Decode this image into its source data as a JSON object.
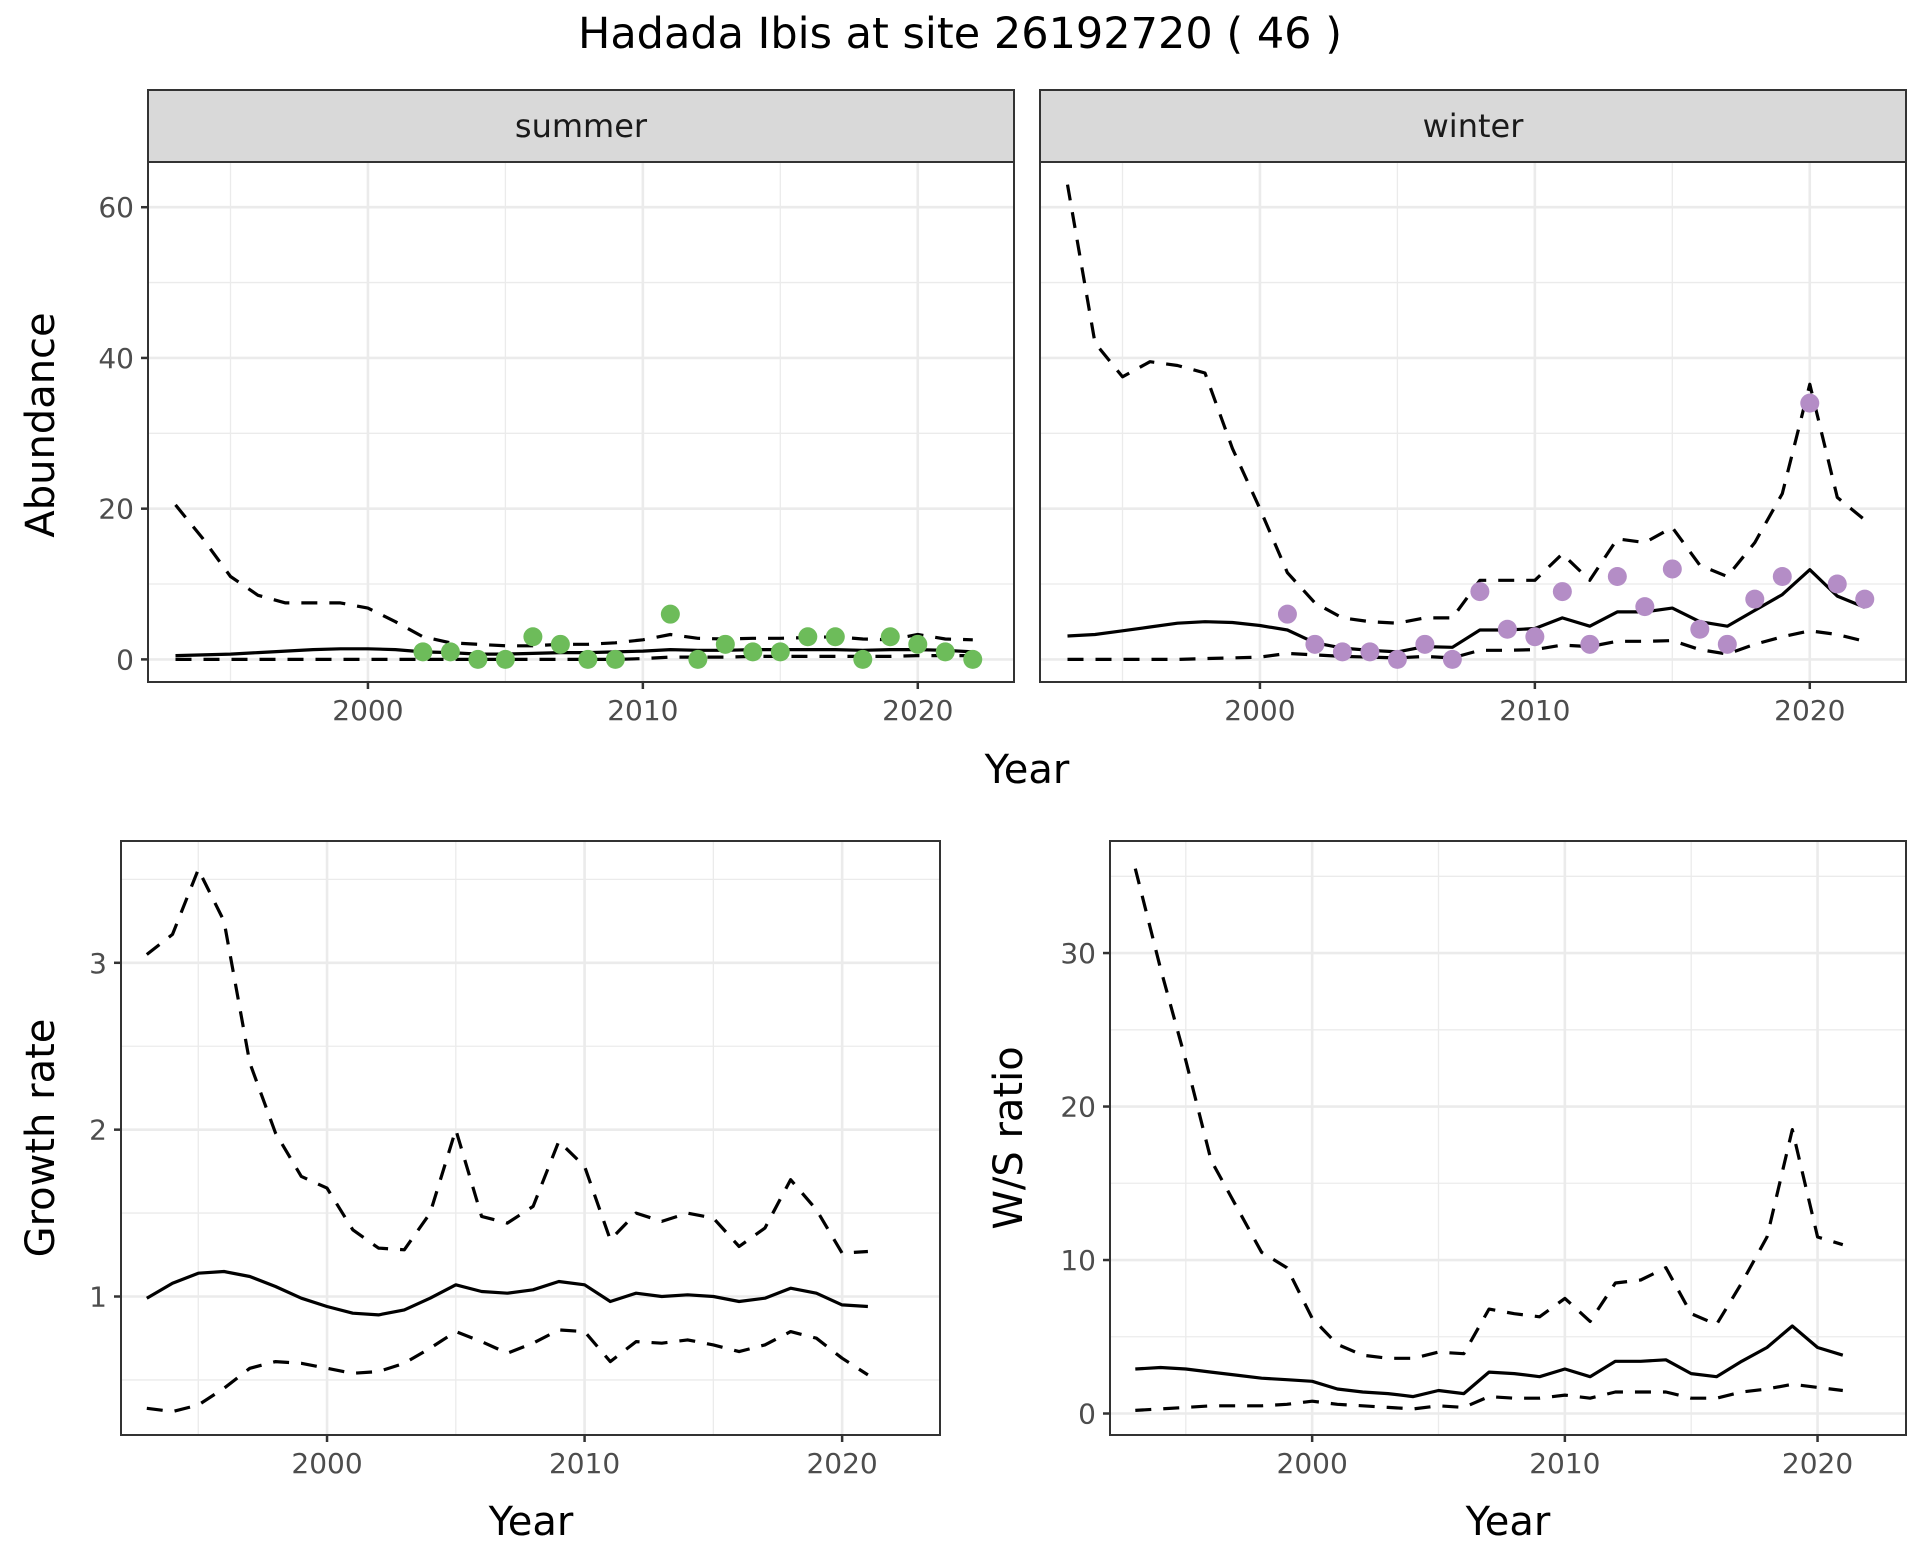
{
  "chart_data": {
    "title": "Hadada Ibis at site 26192720 ( 46 )",
    "panels": [
      {
        "id": "abundance-summer",
        "type": "line",
        "facet": "summer",
        "xlabel": "Year",
        "ylabel": "Abundance",
        "xlim": [
          1992,
          2023.5
        ],
        "ylim": [
          -3,
          66
        ],
        "xticks": [
          2000,
          2010,
          2020
        ],
        "yticks": [
          0,
          20,
          40,
          60
        ],
        "grid": true,
        "point_color": "#6dbc5a",
        "x": [
          1993,
          1994,
          1995,
          1996,
          1997,
          1998,
          1999,
          2000,
          2001,
          2002,
          2003,
          2004,
          2005,
          2006,
          2007,
          2008,
          2009,
          2010,
          2011,
          2012,
          2013,
          2014,
          2015,
          2016,
          2017,
          2018,
          2019,
          2020,
          2021,
          2022
        ],
        "series": [
          {
            "name": "estimate",
            "style": "solid",
            "values": [
              0.5,
              0.6,
              0.7,
              0.9,
              1.1,
              1.3,
              1.4,
              1.4,
              1.3,
              1.0,
              0.9,
              0.7,
              0.7,
              0.8,
              0.9,
              0.9,
              1.0,
              1.1,
              1.3,
              1.2,
              1.2,
              1.3,
              1.3,
              1.3,
              1.3,
              1.2,
              1.3,
              1.3,
              1.2,
              1.0
            ]
          },
          {
            "name": "upper",
            "style": "dashed",
            "values": [
              20.5,
              16,
              11,
              8.5,
              7.5,
              7.5,
              7.5,
              6.8,
              5,
              3,
              2.2,
              2,
              1.8,
              1.8,
              2,
              2,
              2.2,
              2.6,
              3.3,
              2.8,
              2.7,
              2.8,
              2.8,
              2.9,
              3,
              2.7,
              2.6,
              3.3,
              2.7,
              2.6
            ]
          },
          {
            "name": "lower",
            "style": "dashed",
            "values": [
              0,
              0,
              0,
              0,
              0,
              0,
              0,
              0,
              0,
              0,
              0,
              0,
              0,
              0,
              0,
              0,
              0,
              0.1,
              0.3,
              0.3,
              0.3,
              0.4,
              0.4,
              0.4,
              0.4,
              0.4,
              0.4,
              0.5,
              0.5,
              0.5
            ]
          }
        ],
        "points": {
          "x": [
            2002,
            2003,
            2004,
            2005,
            2006,
            2007,
            2008,
            2009,
            2011,
            2012,
            2013,
            2014,
            2015,
            2016,
            2017,
            2018,
            2019,
            2020,
            2021,
            2022
          ],
          "y": [
            1,
            1,
            0,
            0,
            3,
            2,
            0,
            0,
            6,
            0,
            2,
            1,
            1,
            3,
            3,
            0,
            3,
            2,
            1,
            0
          ]
        }
      },
      {
        "id": "abundance-winter",
        "type": "line",
        "facet": "winter",
        "xlabel": "Year",
        "ylabel": "Abundance",
        "xlim": [
          1992,
          2023.5
        ],
        "ylim": [
          -3,
          66
        ],
        "xticks": [
          2000,
          2010,
          2020
        ],
        "yticks": [
          0,
          20,
          40,
          60
        ],
        "grid": true,
        "point_color": "#b48dc6",
        "x": [
          1993,
          1994,
          1995,
          1996,
          1997,
          1998,
          1999,
          2000,
          2001,
          2002,
          2003,
          2004,
          2005,
          2006,
          2007,
          2008,
          2009,
          2010,
          2011,
          2012,
          2013,
          2014,
          2015,
          2016,
          2017,
          2018,
          2019,
          2020,
          2021,
          2022
        ],
        "series": [
          {
            "name": "estimate",
            "style": "solid",
            "values": [
              3.1,
              3.3,
              3.8,
              4.3,
              4.8,
              5.0,
              4.9,
              4.5,
              3.9,
              2.2,
              1.5,
              1.2,
              1.0,
              1.7,
              1.6,
              3.9,
              3.9,
              4.1,
              5.5,
              4.4,
              6.3,
              6.3,
              6.8,
              5.0,
              4.4,
              6.5,
              8.6,
              11.9,
              8.4,
              6.9
            ]
          },
          {
            "name": "upper",
            "style": "dashed",
            "values": [
              63,
              42,
              37.5,
              39.5,
              39,
              38,
              28,
              20,
              11.5,
              7.5,
              5.5,
              5,
              4.8,
              5.5,
              5.5,
              10.5,
              10.5,
              10.5,
              14,
              10.5,
              16,
              15.5,
              17.5,
              12.5,
              11,
              15.5,
              22,
              36.5,
              21.5,
              18.5
            ]
          },
          {
            "name": "lower",
            "style": "dashed",
            "values": [
              0,
              0,
              0,
              0,
              0,
              0.1,
              0.2,
              0.3,
              0.8,
              0.6,
              0.4,
              0.3,
              0.2,
              0.4,
              0.2,
              1.2,
              1.2,
              1.3,
              1.9,
              1.7,
              2.4,
              2.4,
              2.5,
              1.3,
              0.7,
              2.0,
              3.0,
              3.8,
              3.3,
              2.4
            ]
          }
        ],
        "points": {
          "x": [
            2001,
            2002,
            2003,
            2004,
            2005,
            2006,
            2007,
            2008,
            2009,
            2010,
            2011,
            2012,
            2013,
            2014,
            2015,
            2016,
            2017,
            2018,
            2019,
            2020,
            2021,
            2022
          ],
          "y": [
            6,
            2,
            1,
            1,
            0,
            2,
            0,
            9,
            4,
            3,
            9,
            2,
            11,
            7,
            12,
            4,
            2,
            8,
            11,
            34,
            10,
            8
          ]
        }
      },
      {
        "id": "growth-rate",
        "type": "line",
        "xlabel": "Year",
        "ylabel": "Growth rate",
        "xlim": [
          1992,
          2023.8
        ],
        "ylim": [
          0.17,
          3.73
        ],
        "xticks": [
          2000,
          2010,
          2020
        ],
        "yticks": [
          1,
          2,
          3
        ],
        "grid": true,
        "x": [
          1993,
          1994,
          1995,
          1996,
          1997,
          1998,
          1999,
          2000,
          2001,
          2002,
          2003,
          2004,
          2005,
          2006,
          2007,
          2008,
          2009,
          2010,
          2011,
          2012,
          2013,
          2014,
          2015,
          2016,
          2017,
          2018,
          2019,
          2020,
          2021
        ],
        "series": [
          {
            "name": "estimate",
            "style": "solid",
            "values": [
              0.99,
              1.08,
              1.14,
              1.15,
              1.12,
              1.06,
              0.99,
              0.94,
              0.9,
              0.89,
              0.92,
              0.99,
              1.07,
              1.03,
              1.02,
              1.04,
              1.09,
              1.07,
              0.97,
              1.02,
              1.0,
              1.01,
              1.0,
              0.97,
              0.99,
              1.05,
              1.02,
              0.95,
              0.94
            ]
          },
          {
            "name": "upper",
            "style": "dashed",
            "values": [
              3.05,
              3.17,
              3.56,
              3.25,
              2.4,
              1.98,
              1.72,
              1.65,
              1.4,
              1.29,
              1.28,
              1.5,
              2.0,
              1.48,
              1.44,
              1.54,
              1.93,
              1.78,
              1.34,
              1.5,
              1.45,
              1.5,
              1.47,
              1.3,
              1.41,
              1.7,
              1.52,
              1.26,
              1.27
            ]
          },
          {
            "name": "lower",
            "style": "dashed",
            "values": [
              0.33,
              0.31,
              0.35,
              0.45,
              0.57,
              0.61,
              0.6,
              0.57,
              0.54,
              0.55,
              0.6,
              0.69,
              0.79,
              0.73,
              0.66,
              0.72,
              0.8,
              0.79,
              0.61,
              0.73,
              0.72,
              0.74,
              0.71,
              0.67,
              0.71,
              0.79,
              0.75,
              0.63,
              0.53
            ]
          }
        ]
      },
      {
        "id": "ws-ratio",
        "type": "line",
        "xlabel": "Year",
        "ylabel": "W/S ratio",
        "xlim": [
          1992,
          2023.5
        ],
        "ylim": [
          -1.4,
          37.3
        ],
        "xticks": [
          2000,
          2010,
          2020
        ],
        "yticks": [
          0,
          10,
          20,
          30
        ],
        "grid": true,
        "x": [
          1993,
          1994,
          1995,
          1996,
          1997,
          1998,
          1999,
          2000,
          2001,
          2002,
          2003,
          2004,
          2005,
          2006,
          2007,
          2008,
          2009,
          2010,
          2011,
          2012,
          2013,
          2014,
          2015,
          2016,
          2017,
          2018,
          2019,
          2020,
          2021
        ],
        "series": [
          {
            "name": "estimate",
            "style": "solid",
            "values": [
              2.9,
              3.0,
              2.9,
              2.7,
              2.5,
              2.3,
              2.2,
              2.1,
              1.6,
              1.4,
              1.3,
              1.1,
              1.5,
              1.3,
              2.7,
              2.6,
              2.4,
              2.9,
              2.4,
              3.4,
              3.4,
              3.5,
              2.6,
              2.4,
              3.4,
              4.3,
              5.7,
              4.3,
              3.8
            ]
          },
          {
            "name": "upper",
            "style": "dashed",
            "values": [
              35.5,
              29,
              23,
              16.5,
              13.5,
              10.5,
              9.5,
              6.2,
              4.5,
              3.8,
              3.6,
              3.6,
              4.0,
              3.9,
              6.8,
              6.5,
              6.3,
              7.5,
              6.0,
              8.5,
              8.7,
              9.5,
              6.5,
              5.8,
              8.5,
              11.5,
              18.5,
              11.5,
              11
            ]
          },
          {
            "name": "lower",
            "style": "dashed",
            "values": [
              0.2,
              0.3,
              0.4,
              0.5,
              0.5,
              0.5,
              0.6,
              0.8,
              0.6,
              0.5,
              0.4,
              0.3,
              0.5,
              0.4,
              1.1,
              1.0,
              1.0,
              1.2,
              1.0,
              1.4,
              1.4,
              1.4,
              1.0,
              1.0,
              1.4,
              1.6,
              1.9,
              1.7,
              1.5
            ]
          }
        ]
      }
    ]
  }
}
